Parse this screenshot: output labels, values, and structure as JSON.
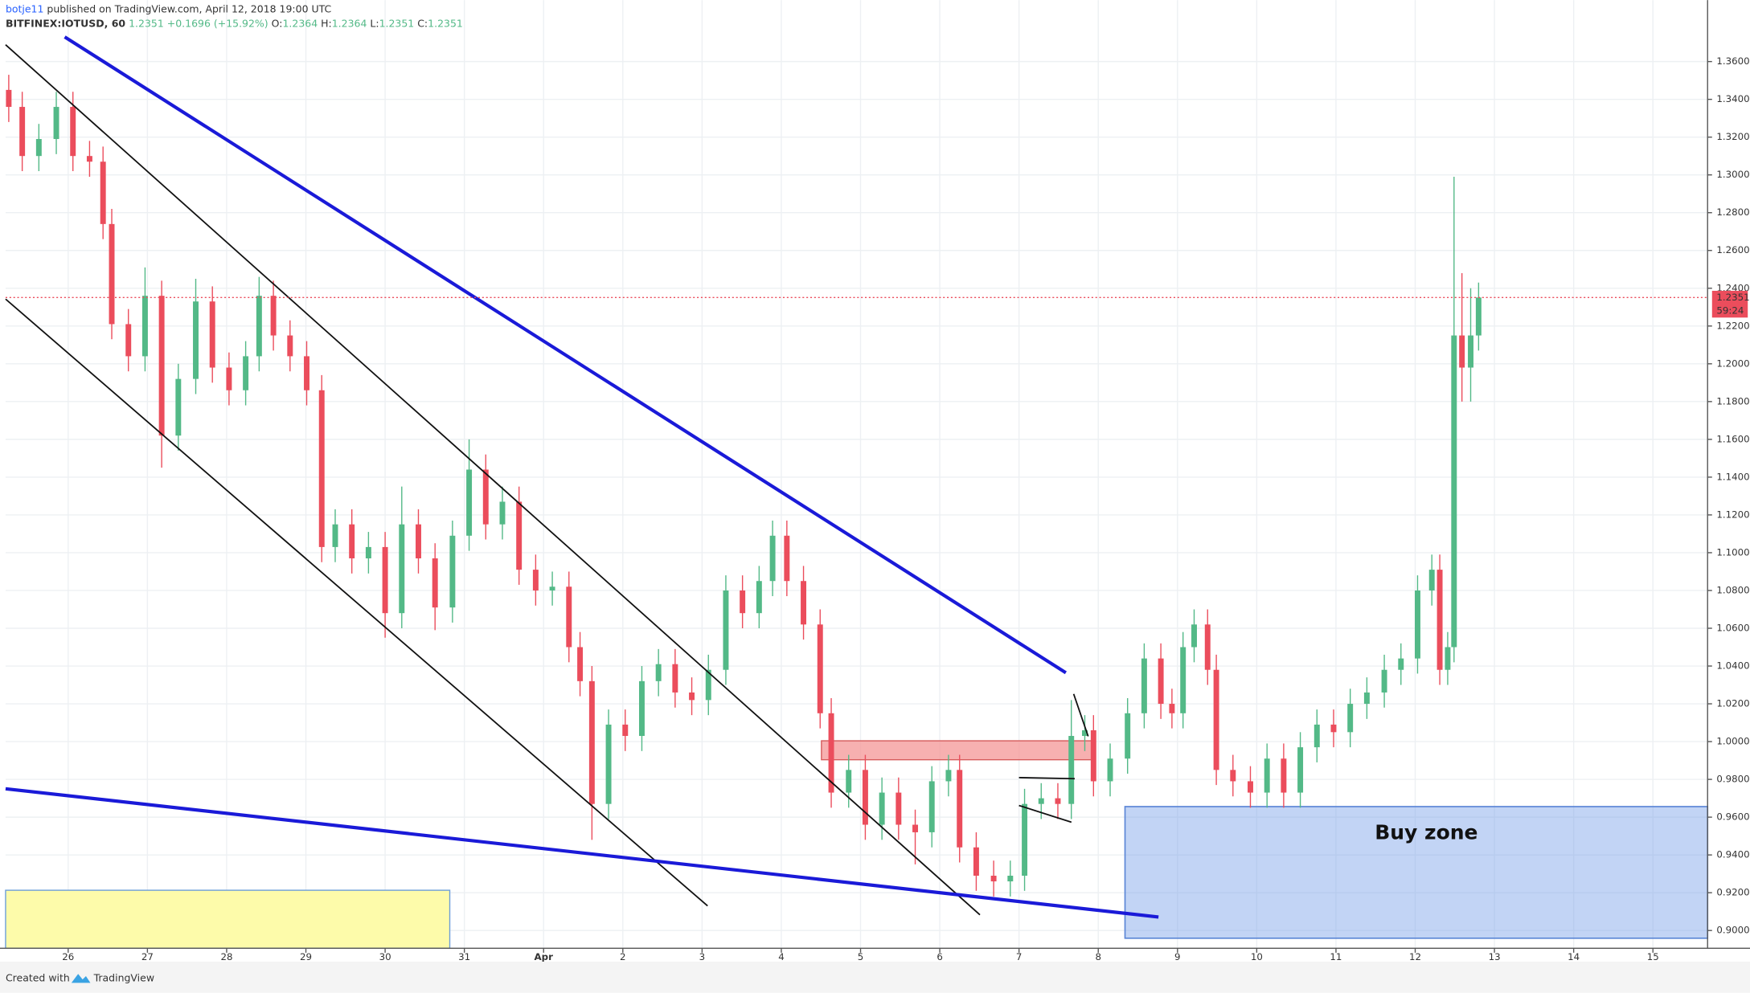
{
  "header": {
    "user": "botje11",
    "published": "published on TradingView.com, April 12, 2018 19:00 UTC",
    "symbol": "BITFINEX:IOTUSD, 60",
    "last": "1.2351",
    "change": "+0.1696 (+15.92%)",
    "open_label": "O:",
    "open": "1.2364",
    "high_label": "H:",
    "high": "1.2364",
    "low_label": "L:",
    "low": "1.2351",
    "close_label": "C:",
    "close": "1.2351"
  },
  "footer": {
    "created": "Created with",
    "brand": "TradingView"
  },
  "chart_data": {
    "type": "candlestick",
    "up_color": "#53b987",
    "down_color": "#eb4d5c",
    "grid": true,
    "annotation": "Buy zone",
    "last_price": 1.2351,
    "countdown": "59:24",
    "x": [
      -0.75,
      -0.58,
      -0.37,
      -0.15,
      0.06,
      0.27,
      0.44,
      0.55,
      0.76,
      0.97,
      1.18,
      1.39,
      1.61,
      1.82,
      2.03,
      2.24,
      2.41,
      2.59,
      2.8,
      3.01,
      3.2,
      3.37,
      3.58,
      3.79,
      4.0,
      4.21,
      4.42,
      4.63,
      4.85,
      5.06,
      5.27,
      5.48,
      5.69,
      5.9,
      6.11,
      6.32,
      6.46,
      6.61,
      6.82,
      7.03,
      7.24,
      7.45,
      7.66,
      7.87,
      8.08,
      8.3,
      8.51,
      8.72,
      8.89,
      9.07,
      9.28,
      9.49,
      9.63,
      9.85,
      10.06,
      10.27,
      10.48,
      10.69,
      10.9,
      11.11,
      11.25,
      11.46,
      11.68,
      11.89,
      12.07,
      12.28,
      12.49,
      12.66,
      12.83,
      12.94,
      13.15,
      13.37,
      13.58,
      13.79,
      13.93,
      14.07,
      14.21,
      14.38,
      14.49,
      14.7,
      14.92,
      15.13,
      15.34,
      15.55,
      15.76,
      15.97,
      16.18,
      16.39,
      16.61,
      16.82,
      17.03,
      17.21,
      17.31,
      17.41,
      17.49,
      17.59,
      17.7,
      17.8
    ],
    "open": [
      1.345,
      1.336,
      1.31,
      1.319,
      1.336,
      1.31,
      1.307,
      1.274,
      1.221,
      1.204,
      1.236,
      1.162,
      1.192,
      1.233,
      1.198,
      1.186,
      1.204,
      1.236,
      1.215,
      1.204,
      1.186,
      1.103,
      1.115,
      1.097,
      1.103,
      1.068,
      1.115,
      1.097,
      1.071,
      1.109,
      1.144,
      1.115,
      1.127,
      1.091,
      1.08,
      1.082,
      1.05,
      1.032,
      0.967,
      1.009,
      1.003,
      1.032,
      1.041,
      1.026,
      1.022,
      1.038,
      1.08,
      1.068,
      1.085,
      1.109,
      1.085,
      1.062,
      1.015,
      0.973,
      0.985,
      0.956,
      0.973,
      0.956,
      0.952,
      0.979,
      0.985,
      0.944,
      0.929,
      0.926,
      0.929,
      0.967,
      0.97,
      0.967,
      1.003,
      1.006,
      0.979,
      0.991,
      1.015,
      1.044,
      1.02,
      1.015,
      1.05,
      1.062,
      1.038,
      0.985,
      0.979,
      0.973,
      0.991,
      0.973,
      0.997,
      1.009,
      1.005,
      1.02,
      1.026,
      1.038,
      1.044,
      1.08,
      1.091,
      1.038,
      1.05,
      1.215,
      1.198,
      1.215
    ],
    "high": [
      1.353,
      1.344,
      1.327,
      1.344,
      1.344,
      1.318,
      1.315,
      1.282,
      1.229,
      1.251,
      1.244,
      1.2,
      1.245,
      1.241,
      1.206,
      1.212,
      1.246,
      1.244,
      1.223,
      1.212,
      1.194,
      1.123,
      1.123,
      1.111,
      1.111,
      1.135,
      1.123,
      1.105,
      1.117,
      1.16,
      1.152,
      1.135,
      1.135,
      1.099,
      1.09,
      1.09,
      1.058,
      1.04,
      1.017,
      1.017,
      1.04,
      1.049,
      1.049,
      1.034,
      1.046,
      1.088,
      1.088,
      1.093,
      1.117,
      1.117,
      1.093,
      1.07,
      1.023,
      0.993,
      0.993,
      0.981,
      0.981,
      0.964,
      0.987,
      0.993,
      0.993,
      0.952,
      0.937,
      0.937,
      0.975,
      0.978,
      0.978,
      1.022,
      1.014,
      1.014,
      0.999,
      1.023,
      1.052,
      1.052,
      1.028,
      1.058,
      1.07,
      1.07,
      1.046,
      0.993,
      0.987,
      0.999,
      0.999,
      1.005,
      1.017,
      1.017,
      1.028,
      1.034,
      1.046,
      1.052,
      1.088,
      1.099,
      1.099,
      1.058,
      1.299,
      1.248,
      1.24,
      1.243
    ],
    "low": [
      1.328,
      1.302,
      1.302,
      1.311,
      1.302,
      1.299,
      1.266,
      1.213,
      1.196,
      1.196,
      1.145,
      1.154,
      1.184,
      1.19,
      1.178,
      1.178,
      1.196,
      1.207,
      1.196,
      1.178,
      1.095,
      1.095,
      1.089,
      1.089,
      1.055,
      1.06,
      1.089,
      1.059,
      1.063,
      1.101,
      1.107,
      1.107,
      1.083,
      1.072,
      1.072,
      1.042,
      1.024,
      0.948,
      0.959,
      0.995,
      0.995,
      1.024,
      1.018,
      1.014,
      1.014,
      1.03,
      1.06,
      1.06,
      1.077,
      1.077,
      1.054,
      1.007,
      0.965,
      0.965,
      0.948,
      0.948,
      0.948,
      0.935,
      0.944,
      0.971,
      0.936,
      0.921,
      0.918,
      0.918,
      0.921,
      0.959,
      0.959,
      0.959,
      0.995,
      0.971,
      0.971,
      0.983,
      1.007,
      1.012,
      1.007,
      1.007,
      1.042,
      1.03,
      0.977,
      0.971,
      0.965,
      0.965,
      0.965,
      0.965,
      0.989,
      0.997,
      0.997,
      1.012,
      1.018,
      1.03,
      1.036,
      1.072,
      1.03,
      1.03,
      1.042,
      1.18,
      1.18,
      1.207
    ],
    "close": [
      1.336,
      1.31,
      1.319,
      1.336,
      1.31,
      1.307,
      1.274,
      1.221,
      1.204,
      1.236,
      1.162,
      1.192,
      1.233,
      1.198,
      1.186,
      1.204,
      1.236,
      1.215,
      1.204,
      1.186,
      1.103,
      1.115,
      1.097,
      1.103,
      1.068,
      1.115,
      1.097,
      1.071,
      1.109,
      1.144,
      1.115,
      1.127,
      1.091,
      1.08,
      1.082,
      1.05,
      1.032,
      0.967,
      1.009,
      1.003,
      1.032,
      1.041,
      1.026,
      1.022,
      1.038,
      1.08,
      1.068,
      1.085,
      1.109,
      1.085,
      1.062,
      1.015,
      0.973,
      0.985,
      0.956,
      0.973,
      0.956,
      0.952,
      0.979,
      0.985,
      0.944,
      0.929,
      0.926,
      0.929,
      0.967,
      0.97,
      0.967,
      1.003,
      1.006,
      0.979,
      0.991,
      1.015,
      1.044,
      1.02,
      1.015,
      1.05,
      1.062,
      1.038,
      0.985,
      0.979,
      0.973,
      0.991,
      0.973,
      0.997,
      1.009,
      1.005,
      1.02,
      1.026,
      1.038,
      1.044,
      1.08,
      1.091,
      1.038,
      1.05,
      1.215,
      1.198,
      1.215,
      1.2351
    ],
    "xlim": [
      -0.79,
      20.69
    ],
    "xticks": [
      {
        "value": 0,
        "label": "26"
      },
      {
        "value": 1,
        "label": "27"
      },
      {
        "value": 2,
        "label": "28"
      },
      {
        "value": 3,
        "label": "29"
      },
      {
        "value": 4,
        "label": "30"
      },
      {
        "value": 5,
        "label": "31"
      },
      {
        "value": 6,
        "label": "Apr"
      },
      {
        "value": 7,
        "label": "2"
      },
      {
        "value": 8,
        "label": "3"
      },
      {
        "value": 9,
        "label": "4"
      },
      {
        "value": 10,
        "label": "5"
      },
      {
        "value": 11,
        "label": "6"
      },
      {
        "value": 12,
        "label": "7"
      },
      {
        "value": 13,
        "label": "8"
      },
      {
        "value": 14,
        "label": "9"
      },
      {
        "value": 15,
        "label": "10"
      },
      {
        "value": 16,
        "label": "11"
      },
      {
        "value": 17,
        "label": "12"
      },
      {
        "value": 18,
        "label": "13"
      },
      {
        "value": 19,
        "label": "14"
      },
      {
        "value": 20,
        "label": "15"
      }
    ],
    "ylim": [
      0.8906,
      1.3689
    ],
    "yticks": [
      {
        "value": 0.9,
        "label": "0.9000"
      },
      {
        "value": 0.92,
        "label": "0.9200"
      },
      {
        "value": 0.94,
        "label": "0.9400"
      },
      {
        "value": 0.96,
        "label": "0.9600"
      },
      {
        "value": 0.98,
        "label": "0.9800"
      },
      {
        "value": 1.0,
        "label": "1.0000"
      },
      {
        "value": 1.02,
        "label": "1.0200"
      },
      {
        "value": 1.04,
        "label": "1.0400"
      },
      {
        "value": 1.06,
        "label": "1.0600"
      },
      {
        "value": 1.08,
        "label": "1.0800"
      },
      {
        "value": 1.1,
        "label": "1.1000"
      },
      {
        "value": 1.12,
        "label": "1.1200"
      },
      {
        "value": 1.14,
        "label": "1.1400"
      },
      {
        "value": 1.16,
        "label": "1.1600"
      },
      {
        "value": 1.18,
        "label": "1.1800"
      },
      {
        "value": 1.2,
        "label": "1.2000"
      },
      {
        "value": 1.22,
        "label": "1.2200"
      },
      {
        "value": 1.24,
        "label": "1.2400"
      },
      {
        "value": 1.26,
        "label": "1.2600"
      },
      {
        "value": 1.28,
        "label": "1.2800"
      },
      {
        "value": 1.3,
        "label": "1.3000"
      },
      {
        "value": 1.32,
        "label": "1.3200"
      },
      {
        "value": 1.34,
        "label": "1.3400"
      },
      {
        "value": 1.36,
        "label": "1.3600"
      }
    ]
  }
}
